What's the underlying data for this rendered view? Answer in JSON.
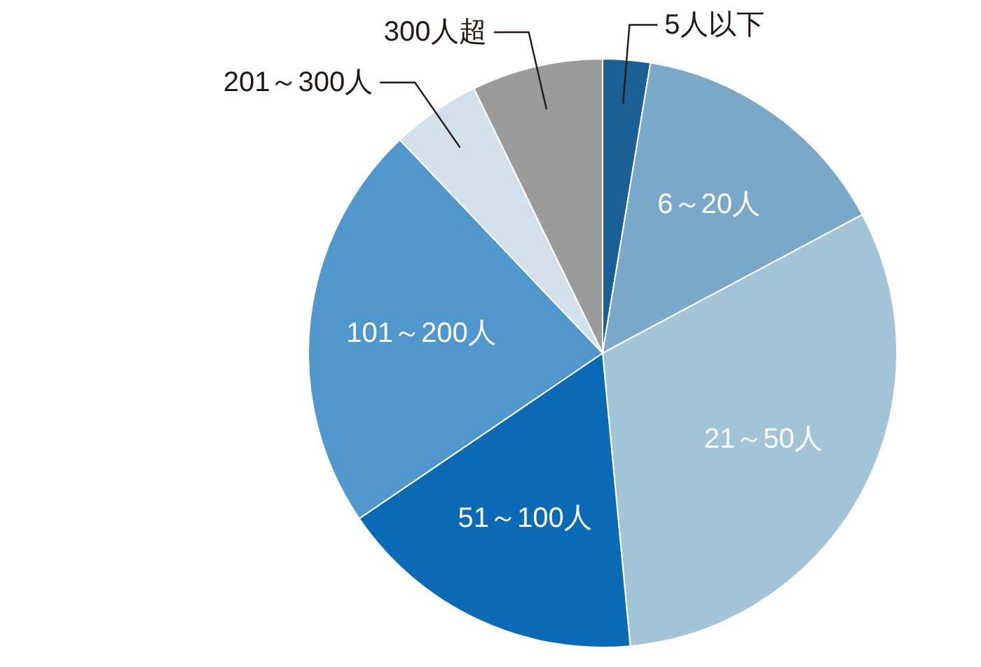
{
  "chart_data": {
    "type": "pie",
    "categories": [
      "5人以下",
      "6～20人",
      "21～50人",
      "51～100人",
      "101～200人",
      "201～300人",
      "300人超"
    ],
    "values": [
      2.6,
      14.6,
      31.3,
      17.0,
      22.4,
      4.9,
      7.2
    ],
    "colors": [
      "#1a5f96",
      "#7aa8c8",
      "#a3c3d7",
      "#0a6ab5",
      "#4f97cc",
      "#d2e0eb",
      "#9b9b9b"
    ]
  }
}
